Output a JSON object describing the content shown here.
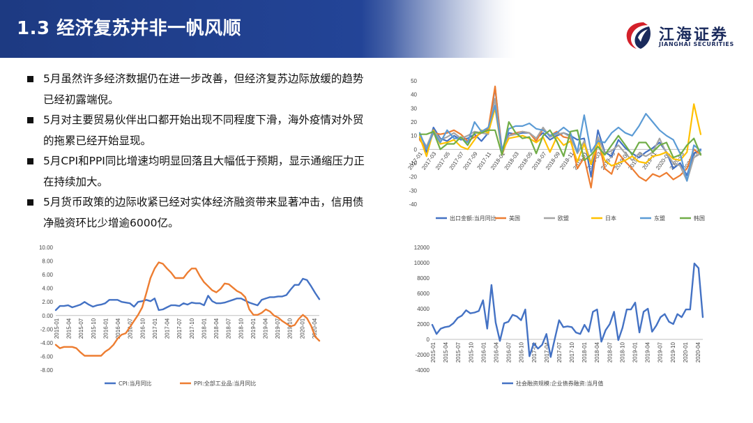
{
  "slide": {
    "title": "1.3 经济复苏并非一帆风顺",
    "logo_cn": "江海证券",
    "logo_en": "JIANGHAI SECURITIES",
    "colors": {
      "header": "#1d3a82",
      "logo_red": "#d4202a",
      "logo_navy": "#1a2a5c"
    }
  },
  "bullets": [
    {
      "line1": "5月虽然许多经济数据仍在进一步改善，但经济复苏边际放缓的趋势",
      "line2": "已经初露端倪。"
    },
    {
      "line1": "5月对主要贸易伙伴出口都开始出现不同程度下滑，海外疫情对外贸",
      "line2": "的拖累已经开始显现。"
    },
    {
      "line1": "5月CPI和PPI同比增速均明显回落且大幅低于预期，显示通缩压力正",
      "line2": "在持续加大。"
    },
    {
      "line1": "5月货币政策的边际收紧已经对实体经济融资带来显著冲击，信用债",
      "line2": "净融资环比少增逾6000亿。"
    }
  ],
  "chart_data": [
    {
      "id": "exports",
      "type": "line",
      "ylim": [
        -40,
        50
      ],
      "yticks": [
        50,
        40,
        30,
        20,
        10,
        0,
        -10,
        -20,
        -30,
        -40
      ],
      "xlabels": [
        "2017-01",
        "2017-03",
        "2017-05",
        "2017-07",
        "2017-09",
        "2017-11",
        "2018-01",
        "2018-03",
        "2018-05",
        "2018-07",
        "2018-09",
        "2018-11",
        "2019-01",
        "2019-03",
        "2019-05",
        "2019-07",
        "2019-09",
        "2019-11",
        "2020-01",
        "2020-03",
        "2020-05"
      ],
      "grid": false,
      "legend": "bottom",
      "series": [
        {
          "name": "出口金额:当月同比",
          "color": "#4472c4",
          "values": [
            8,
            -2,
            16,
            8,
            6,
            10,
            7,
            8,
            11,
            6,
            12,
            45,
            -1,
            12,
            11,
            12,
            12,
            8,
            12,
            7,
            10,
            12,
            10,
            7,
            8,
            -20,
            14,
            -2,
            -5,
            7,
            1,
            -3,
            -6,
            -2,
            1,
            5,
            -2,
            -14,
            -10,
            -19,
            -3,
            0
          ]
        },
        {
          "name": "美国",
          "color": "#ed7d31",
          "values": [
            7,
            0,
            12,
            11,
            12,
            14,
            11,
            6,
            9,
            12,
            15,
            46,
            -4,
            10,
            12,
            13,
            12,
            6,
            15,
            10,
            13,
            9,
            8,
            -14,
            -6,
            -28,
            8,
            -14,
            -18,
            -3,
            -9,
            -14,
            -20,
            -23,
            -18,
            -20,
            -17,
            -22,
            -19,
            -14,
            0,
            -4
          ]
        },
        {
          "name": "欧盟",
          "color": "#a5a5a5",
          "values": [
            10,
            2,
            14,
            7,
            9,
            12,
            8,
            10,
            13,
            12,
            11,
            37,
            -3,
            10,
            11,
            13,
            12,
            8,
            16,
            9,
            11,
            12,
            9,
            -3,
            6,
            -10,
            9,
            -3,
            -1,
            3,
            -3,
            -8,
            -3,
            -5,
            -2,
            8,
            -3,
            -10,
            -12,
            -23,
            -6,
            -3
          ]
        },
        {
          "name": "日本",
          "color": "#ffc000",
          "values": [
            9,
            -5,
            14,
            4,
            5,
            7,
            2,
            0,
            7,
            14,
            12,
            30,
            -2,
            8,
            9,
            10,
            8,
            5,
            9,
            -2,
            9,
            3,
            6,
            -9,
            4,
            -11,
            6,
            -8,
            -12,
            -10,
            -8,
            -5,
            -9,
            -10,
            -5,
            -4,
            -2,
            -7,
            -8,
            -2,
            33,
            11
          ]
        },
        {
          "name": "东盟",
          "color": "#5b9bd5",
          "values": [
            12,
            0,
            13,
            5,
            14,
            8,
            8,
            5,
            20,
            13,
            16,
            32,
            -1,
            15,
            17,
            17,
            19,
            15,
            14,
            10,
            12,
            16,
            12,
            -2,
            25,
            -2,
            6,
            5,
            12,
            16,
            12,
            10,
            17,
            26,
            20,
            14,
            10,
            7,
            -3,
            -23,
            3,
            -1
          ]
        },
        {
          "name": "韩国",
          "color": "#70ad47",
          "values": [
            11,
            11,
            13,
            0,
            4,
            4,
            9,
            3,
            12,
            12,
            14,
            14,
            -4,
            20,
            12,
            8,
            9,
            -3,
            10,
            14,
            6,
            -5,
            13,
            14,
            -8,
            -4,
            2,
            -4,
            3,
            10,
            3,
            -4,
            5,
            5,
            -2,
            3,
            5,
            -6,
            -4,
            3,
            8,
            -4
          ]
        }
      ]
    },
    {
      "id": "cpi_ppi",
      "type": "line",
      "ylim": [
        -8,
        10
      ],
      "yticks": [
        "10.00",
        "8.00",
        "6.00",
        "4.00",
        "2.00",
        "0.00",
        "-2.00",
        "-4.00",
        "-6.00",
        "-8.00"
      ],
      "xlabels": [
        "2015-01",
        "2015-04",
        "2015-07",
        "2015-10",
        "2016-01",
        "2016-04",
        "2016-07",
        "2016-10",
        "2017-01",
        "2017-04",
        "2017-07",
        "2017-10",
        "2018-01",
        "2018-04",
        "2018-07",
        "2018-10",
        "2019-01",
        "2019-04",
        "2019-07",
        "2019-10",
        "2020-01",
        "2020-04"
      ],
      "grid": false,
      "legend": "bottom",
      "series": [
        {
          "name": "CPI:当月同比",
          "color": "#4472c4",
          "values": [
            0.8,
            1.4,
            1.4,
            1.5,
            1.2,
            1.4,
            1.6,
            2.0,
            1.6,
            1.3,
            1.5,
            1.6,
            1.8,
            2.3,
            2.3,
            2.3,
            2.0,
            1.9,
            1.8,
            1.3,
            2.0,
            2.1,
            2.3,
            2.1,
            2.5,
            0.8,
            0.9,
            1.2,
            1.5,
            1.5,
            1.4,
            1.8,
            1.6,
            1.9,
            1.8,
            1.8,
            1.5,
            2.9,
            2.1,
            1.8,
            1.8,
            1.9,
            2.1,
            2.3,
            2.5,
            2.5,
            2.2,
            1.9,
            1.7,
            1.5,
            2.3,
            2.5,
            2.7,
            2.7,
            2.8,
            2.8,
            3.0,
            3.8,
            4.5,
            4.5,
            5.4,
            5.2,
            4.3,
            3.3,
            2.4
          ]
        },
        {
          "name": "PPI:全部工业品:当月同比",
          "color": "#ed7d31",
          "values": [
            -4.3,
            -4.8,
            -4.6,
            -4.6,
            -4.6,
            -4.8,
            -5.4,
            -5.9,
            -5.9,
            -5.9,
            -5.9,
            -5.9,
            -5.3,
            -4.9,
            -4.3,
            -3.4,
            -2.8,
            -2.6,
            -1.7,
            -0.8,
            0.1,
            1.2,
            3.3,
            5.5,
            6.9,
            7.8,
            7.6,
            6.9,
            6.3,
            5.5,
            5.5,
            5.5,
            6.3,
            6.9,
            6.9,
            5.8,
            4.9,
            4.3,
            3.7,
            3.4,
            3.9,
            4.7,
            4.6,
            4.1,
            3.6,
            3.3,
            2.7,
            0.9,
            0.1,
            0.1,
            0.4,
            0.9,
            0.6,
            0,
            -0.3,
            -0.8,
            -1.2,
            -1.6,
            -1.4,
            -0.5,
            0.1,
            -0.4,
            -1.5,
            -3.1,
            -3.7
          ]
        }
      ]
    },
    {
      "id": "tsf_bonds",
      "type": "line",
      "ylim": [
        -4000,
        12000
      ],
      "yticks": [
        12000,
        10000,
        8000,
        6000,
        4000,
        2000,
        0,
        -2000,
        -4000
      ],
      "xlabels": [
        "2015-01",
        "2015-04",
        "2015-07",
        "2015-10",
        "2016-01",
        "2016-04",
        "2016-07",
        "2016-10",
        "2017-01",
        "2017-04",
        "2017-07",
        "2017-10",
        "2018-01",
        "2018-04",
        "2018-07",
        "2018-10",
        "2019-01",
        "2019-04",
        "2019-07",
        "2019-10",
        "2020-01",
        "2020-04"
      ],
      "grid": false,
      "legend": "bottom",
      "series": [
        {
          "name": "社会融资规模:企业债券融资:当月值",
          "color": "#4472c4",
          "values": [
            1900,
            700,
            1400,
            1600,
            1700,
            2100,
            2800,
            3100,
            3800,
            3400,
            3500,
            3700,
            5100,
            1400,
            7100,
            2200,
            -200,
            2100,
            2300,
            3200,
            3000,
            2500,
            3900,
            -2200,
            -500,
            -1200,
            -700,
            700,
            -2300,
            100,
            2500,
            1600,
            1700,
            1600,
            900,
            700,
            1900,
            1000,
            3600,
            3900,
            -300,
            1200,
            2000,
            3600,
            -100,
            1500,
            3900,
            3900,
            4800,
            900,
            3600,
            4000,
            1000,
            1800,
            2900,
            3300,
            2300,
            2000,
            3300,
            2900,
            3900,
            3900,
            9900,
            9300,
            2900
          ]
        }
      ]
    }
  ]
}
